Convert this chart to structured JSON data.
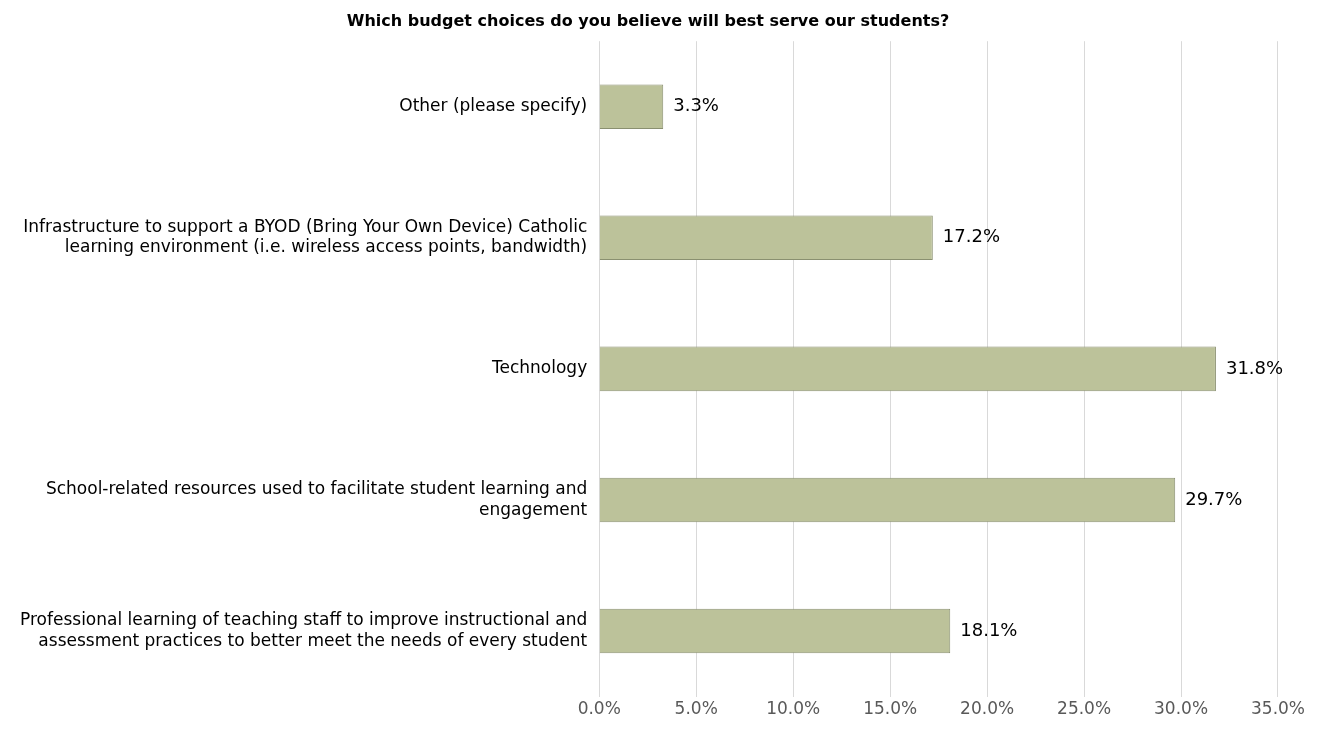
{
  "chart_data": {
    "type": "bar",
    "orientation": "horizontal",
    "title": "Which budget choices do you believe will best serve our students?",
    "categories": [
      "Other (please specify)",
      "Infrastructure to support a BYOD (Bring Your Own Device) Catholic learning environment (i.e. wireless access points, bandwidth)",
      "Technology",
      "School-related resources used to facilitate student learning and engagement",
      "Professional learning of teaching staff to improve instructional and assessment practices to better meet the needs of every student"
    ],
    "values": [
      3.3,
      17.2,
      31.8,
      29.7,
      18.1
    ],
    "value_labels": [
      "3.3%",
      "17.2%",
      "31.8%",
      "29.7%",
      "18.1%"
    ],
    "color": "#bcc29a",
    "xlim": [
      0,
      35
    ],
    "xticks": [
      {
        "value": 0,
        "label": "0.0%"
      },
      {
        "value": 5,
        "label": "5.0%"
      },
      {
        "value": 10,
        "label": "10.0%"
      },
      {
        "value": 15,
        "label": "15.0%"
      },
      {
        "value": 20,
        "label": "20.0%"
      },
      {
        "value": 25,
        "label": "25.0%"
      },
      {
        "value": 30,
        "label": "30.0%"
      },
      {
        "value": 35,
        "label": "35.0%"
      }
    ],
    "grid": "x",
    "legend": false
  }
}
